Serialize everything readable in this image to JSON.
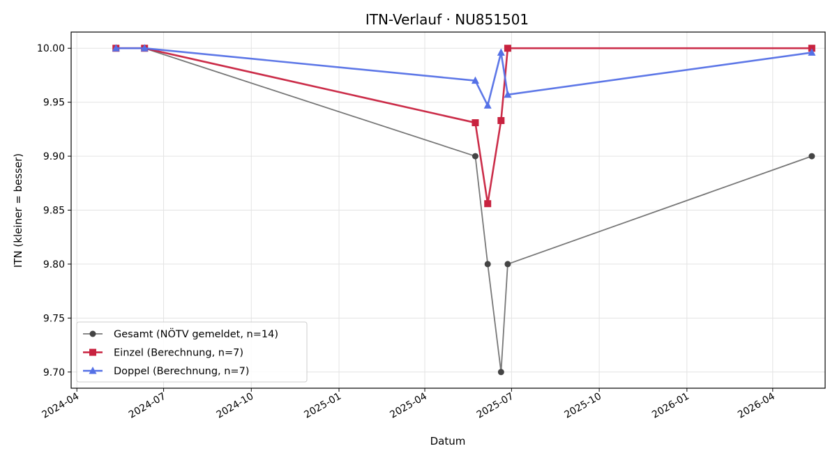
{
  "chart_data": {
    "type": "line",
    "title": "ITN-Verlauf · NU851501",
    "xlabel": "Datum",
    "ylabel": "ITN  (kleiner = besser)",
    "x_type": "date",
    "xlim": [
      "2024-03-26",
      "2026-05-26"
    ],
    "ylim": [
      9.685,
      10.015
    ],
    "x_ticks": [
      "2024-04-01",
      "2024-07-01",
      "2024-10-01",
      "2025-01-01",
      "2025-04-01",
      "2025-07-01",
      "2025-10-01",
      "2026-01-01",
      "2026-04-01"
    ],
    "x_tick_labels": [
      "2024-04",
      "2024-07",
      "2024-10",
      "2025-01",
      "2025-04",
      "2025-07",
      "2025-10",
      "2026-01",
      "2026-04"
    ],
    "y_ticks": [
      9.7,
      9.75,
      9.8,
      9.85,
      9.9,
      9.95,
      10.0
    ],
    "y_tick_labels": [
      "9.70",
      "9.75",
      "9.80",
      "9.85",
      "9.90",
      "9.95",
      "10.00"
    ],
    "grid": true,
    "legend_position": "bottom-left",
    "series": [
      {
        "name": "Gesamt (NÖTV gemeldet, n=14)",
        "color": "#777777",
        "marker_color": "#444444",
        "marker": "circle",
        "line_width": 1.8,
        "x": [
          "2024-05-12",
          "2024-06-11",
          "2025-05-24",
          "2025-06-06",
          "2025-06-20",
          "2025-06-27",
          "2026-05-12"
        ],
        "y": [
          10.0,
          10.0,
          9.9,
          9.8,
          9.7,
          9.8,
          9.9
        ]
      },
      {
        "name": "Einzel (Berechnung, n=7)",
        "color": "#C8223F",
        "marker_color": "#C8223F",
        "marker": "square",
        "line_width": 2.6,
        "x": [
          "2024-05-12",
          "2024-06-11",
          "2025-05-24",
          "2025-06-06",
          "2025-06-20",
          "2025-06-27",
          "2026-05-12"
        ],
        "y": [
          10.0,
          10.0,
          9.931,
          9.856,
          9.933,
          10.0,
          10.0
        ]
      },
      {
        "name": "Doppel (Berechnung, n=7)",
        "color": "#5470E6",
        "marker_color": "#5470E6",
        "marker": "triangle",
        "line_width": 2.6,
        "x": [
          "2024-05-12",
          "2024-06-11",
          "2025-05-24",
          "2025-06-06",
          "2025-06-20",
          "2025-06-27",
          "2026-05-12"
        ],
        "y": [
          10.0,
          10.0,
          9.97,
          9.947,
          9.996,
          9.957,
          9.996
        ]
      }
    ]
  }
}
